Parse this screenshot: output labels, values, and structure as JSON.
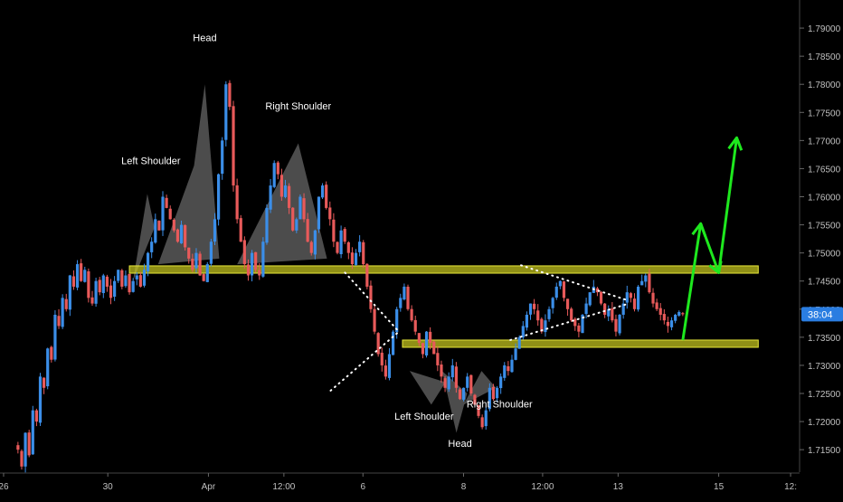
{
  "chart_data": {
    "type": "candlestick",
    "colors": {
      "background": "#000000",
      "bull": "#3b8ee8",
      "bear": "#e85a5a",
      "zone_fill": "#c8c81e",
      "zone_stroke": "#e8e83a",
      "pattern_fill": "#8a8a8a",
      "arrow": "#1ee81e",
      "dotted": "#ffffff",
      "price_tag": "#2a7de1",
      "axis_text": "#c0c0c0"
    },
    "y_axis": {
      "range": [
        1.711,
        1.795
      ],
      "ticks": [
        "1.79000",
        "1.78500",
        "1.78000",
        "1.77500",
        "1.77000",
        "1.76500",
        "1.76000",
        "1.75500",
        "1.75000",
        "1.74500",
        "1.74000",
        "1.73500",
        "1.73000",
        "1.72500",
        "1.72000",
        "1.71500"
      ],
      "current_price_label": "38:04",
      "current_price": 1.7391
    },
    "x_axis": {
      "ticks": [
        {
          "label": "26",
          "t": 1
        },
        {
          "label": "30",
          "t": 30
        },
        {
          "label": "Apr",
          "t": 58
        },
        {
          "label": "12:00",
          "t": 79
        },
        {
          "label": "6",
          "t": 101
        },
        {
          "label": "8",
          "t": 129
        },
        {
          "label": "12:00",
          "t": 151
        },
        {
          "label": "13",
          "t": 172
        },
        {
          "label": "15",
          "t": 200
        },
        {
          "label": "12:",
          "t": 220
        }
      ]
    },
    "zones": [
      {
        "t_start": 36,
        "t_end": 211,
        "y_top": 1.7477,
        "y_bottom": 1.7464
      },
      {
        "t_start": 112,
        "t_end": 211,
        "y_top": 1.7345,
        "y_bottom": 1.7334
      }
    ],
    "series_close": [
      1.715,
      1.712,
      1.718,
      1.714,
      1.722,
      1.72,
      1.728,
      1.726,
      1.733,
      1.731,
      1.739,
      1.737,
      1.742,
      1.74,
      1.746,
      1.744,
      1.748,
      1.745,
      1.747,
      1.742,
      1.741,
      1.745,
      1.743,
      1.746,
      1.744,
      1.742,
      1.745,
      1.747,
      1.744,
      1.746,
      1.743,
      1.745,
      1.746,
      1.744,
      1.747,
      1.75,
      1.752,
      1.756,
      1.754,
      1.76,
      1.758,
      1.756,
      1.754,
      1.752,
      1.755,
      1.751,
      1.749,
      1.747,
      1.75,
      1.746,
      1.745,
      1.748,
      1.752,
      1.756,
      1.764,
      1.77,
      1.78,
      1.776,
      1.762,
      1.756,
      1.752,
      1.748,
      1.746,
      1.75,
      1.747,
      1.746,
      1.752,
      1.758,
      1.762,
      1.766,
      1.764,
      1.76,
      1.762,
      1.758,
      1.754,
      1.756,
      1.76,
      1.756,
      1.752,
      1.75,
      1.754,
      1.76,
      1.762,
      1.758,
      1.756,
      1.752,
      1.75,
      1.754,
      1.752,
      1.75,
      1.748,
      1.75,
      1.752,
      1.748,
      1.744,
      1.74,
      1.736,
      1.732,
      1.73,
      1.728,
      1.732,
      1.736,
      1.74,
      1.742,
      1.744,
      1.74,
      1.738,
      1.736,
      1.734,
      1.732,
      1.736,
      1.734,
      1.732,
      1.73,
      1.728,
      1.726,
      1.728,
      1.73,
      1.726,
      1.724,
      1.726,
      1.728,
      1.725,
      1.723,
      1.721,
      1.719,
      1.722,
      1.726,
      1.724,
      1.726,
      1.728,
      1.73,
      1.729,
      1.731,
      1.733,
      1.735,
      1.737,
      1.739,
      1.741,
      1.74,
      1.738,
      1.736,
      1.738,
      1.74,
      1.742,
      1.744,
      1.745,
      1.742,
      1.74,
      1.738,
      1.737,
      1.736,
      1.739,
      1.741,
      1.743,
      1.744,
      1.743,
      1.741,
      1.739,
      1.74,
      1.738,
      1.736,
      1.739,
      1.741,
      1.743,
      1.742,
      1.74,
      1.744,
      1.745,
      1.746,
      1.743,
      1.741,
      1.74,
      1.739,
      1.738,
      1.737,
      1.738,
      1.739,
      1.7395,
      1.7391
    ],
    "triangles": [
      {
        "points": [
          [
            37,
            1.745
          ],
          [
            41,
            1.7605
          ],
          [
            43,
            1.7545
          ]
        ]
      },
      {
        "points": [
          [
            44,
            1.748
          ],
          [
            54,
            1.7655
          ],
          [
            57,
            1.78
          ],
          [
            61,
            1.749
          ]
        ]
      },
      {
        "points": [
          [
            66,
            1.748
          ],
          [
            83,
            1.7695
          ],
          [
            91,
            1.749
          ]
        ]
      },
      {
        "points": [
          [
            114,
            1.729
          ],
          [
            120,
            1.723
          ],
          [
            124,
            1.727
          ]
        ]
      },
      {
        "points": [
          [
            123,
            1.729
          ],
          [
            127,
            1.718
          ],
          [
            130,
            1.725
          ]
        ]
      },
      {
        "points": [
          [
            129,
            1.723
          ],
          [
            134,
            1.729
          ],
          [
            138,
            1.726
          ]
        ]
      }
    ],
    "dotted_lines": [
      {
        "from": [
          96,
          1.7465
        ],
        "to": [
          111,
          1.736
        ]
      },
      {
        "from": [
          92,
          1.7255
        ],
        "to": [
          111,
          1.736
        ]
      },
      {
        "from": [
          145,
          1.7478
        ],
        "to": [
          175,
          1.7415
        ]
      },
      {
        "from": [
          142,
          1.7345
        ],
        "to": [
          175,
          1.741
        ]
      }
    ],
    "arrow_path": [
      [
        190,
        1.7345
      ],
      [
        195,
        1.7552
      ],
      [
        200,
        1.7465
      ],
      [
        205,
        1.7705
      ]
    ],
    "annotations": [
      {
        "text": "Head",
        "t": 57,
        "y": 1.7877
      },
      {
        "text": "Left Shoulder",
        "t": 42,
        "y": 1.7658
      },
      {
        "text": "Right Shoulder",
        "t": 83,
        "y": 1.7755
      },
      {
        "text": "Left Shoulder",
        "t": 118,
        "y": 1.7203
      },
      {
        "text": "Right Shoulder",
        "t": 139,
        "y": 1.7225
      },
      {
        "text": "Head",
        "t": 128,
        "y": 1.7155
      }
    ],
    "t_range": [
      0,
      222
    ]
  }
}
